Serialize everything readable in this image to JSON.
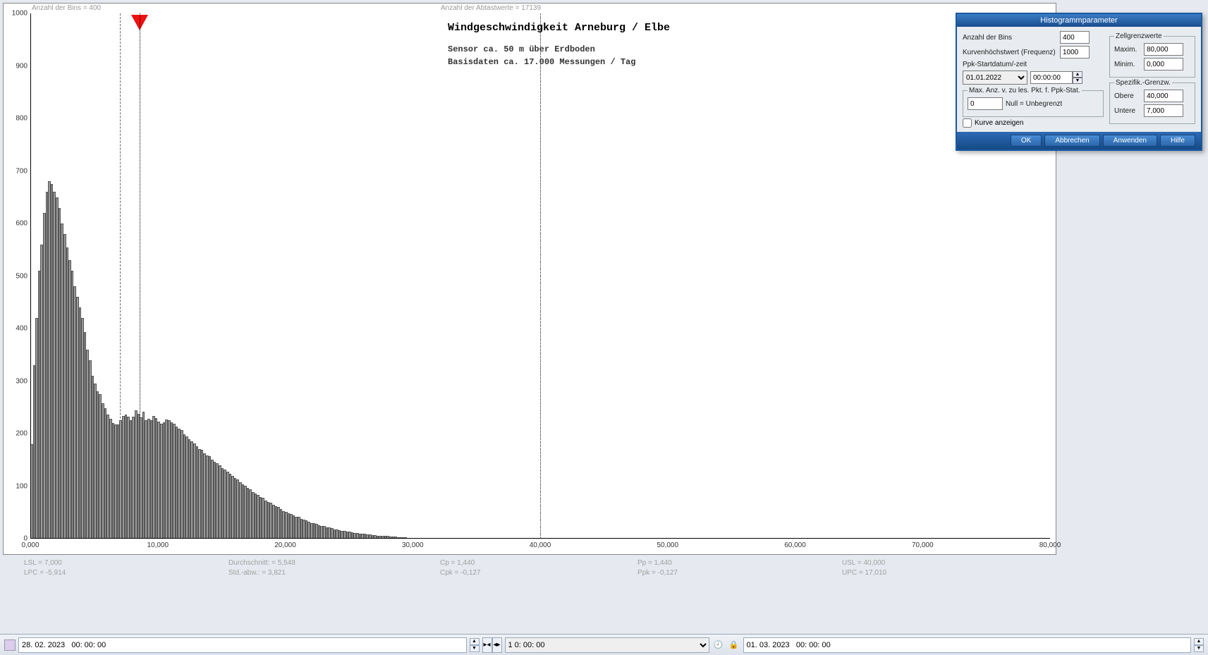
{
  "top_labels": {
    "bins": "Anzahl der Bins =   400",
    "samples": "Anzahl der Abtastwerte = 17139"
  },
  "chart": {
    "title": "Windgeschwindigkeit  Arneburg / Elbe",
    "sub1": "Sensor ca. 50 m über Erdboden",
    "sub2": "Basisdaten ca. 17.000 Messungen / Tag",
    "xlim": [
      0,
      80
    ],
    "ylim": [
      0,
      1000
    ],
    "xtick_labels": [
      "0,000",
      "10,000",
      "20,000",
      "30,000",
      "40,000",
      "50,000",
      "60,000",
      "70,000",
      "80,000"
    ],
    "ytick_labels": [
      "0",
      "100",
      "200",
      "300",
      "400",
      "500",
      "600",
      "700",
      "800",
      "900",
      "1000"
    ],
    "xtick_vals": [
      0,
      10,
      20,
      30,
      40,
      50,
      60,
      70,
      80
    ],
    "ytick_vals": [
      0,
      100,
      200,
      300,
      400,
      500,
      600,
      700,
      800,
      900,
      1000
    ],
    "bar_color": "#999999",
    "bar_border": "#555555",
    "bg": "#ffffff",
    "vlines": [
      {
        "x": 7.0,
        "style": "dashed",
        "color": "#666"
      },
      {
        "x": 40.0,
        "style": "dashdot",
        "color": "#666"
      }
    ],
    "marker_x": 8.6,
    "bar_width_x": 0.2,
    "bars": [
      180,
      330,
      420,
      510,
      560,
      620,
      660,
      680,
      675,
      660,
      650,
      630,
      600,
      580,
      555,
      530,
      510,
      480,
      460,
      440,
      420,
      393,
      360,
      340,
      310,
      295,
      280,
      275,
      258,
      248,
      236,
      228,
      220,
      217,
      218,
      225,
      233,
      236,
      232,
      226,
      232,
      244,
      238,
      231,
      242,
      225,
      228,
      226,
      233,
      230,
      223,
      219,
      222,
      227,
      225,
      221,
      219,
      214,
      209,
      207,
      199,
      194,
      189,
      185,
      181,
      176,
      171,
      169,
      163,
      159,
      157,
      150,
      146,
      144,
      139,
      134,
      132,
      128,
      123,
      120,
      116,
      113,
      108,
      104,
      101,
      97,
      94,
      89,
      86,
      83,
      79,
      78,
      73,
      70,
      69,
      65,
      62,
      60,
      57,
      53,
      51,
      48,
      47,
      44,
      42,
      41,
      38,
      36,
      35,
      32,
      30,
      29,
      28,
      26,
      24,
      24,
      22,
      21,
      20,
      18,
      18,
      16,
      15,
      15,
      13,
      13,
      12,
      11,
      11,
      10,
      9,
      9,
      8,
      8,
      7,
      7,
      6,
      6,
      5,
      5,
      5,
      4,
      4,
      4,
      3,
      3,
      3,
      3,
      2,
      2,
      2,
      2,
      2,
      2,
      1,
      1,
      1,
      1,
      1,
      1,
      1,
      1,
      0,
      0,
      0,
      0,
      0
    ]
  },
  "stats": {
    "lsl": "LSL = 7,000",
    "lpc": "LPC = -5,914",
    "avg": "Durchschnitt: = 5,548",
    "std": "Std.-abw.: = 3,821",
    "cp": "Cp  = 1,440",
    "cpk": "Cpk = -0,127",
    "pp": "Pp  = 1,440",
    "ppk": "Ppk = -0,127",
    "usl": "USL = 40,000",
    "upc": "UPC = 17,010"
  },
  "dialog": {
    "title": "Histogrammparameter",
    "bins_lbl": "Anzahl der Bins",
    "bins_val": "400",
    "freq_lbl": "Kurvenhöchstwert (Frequenz)",
    "freq_val": "1000",
    "ppk_lbl": "Ppk-Startdatum/-zeit",
    "ppk_date": "01.01.2022",
    "ppk_time": "00:00:00",
    "maxpkt_legend": "Max. Anz. v. zu les. Pkt. f. Ppk-Stat.",
    "maxpkt_val": "0",
    "maxpkt_hint": "Null = Unbegrenzt",
    "zell_legend": "Zellgrenzwerte",
    "zell_max_lbl": "Maxim.",
    "zell_max": "80,000",
    "zell_min_lbl": "Minim.",
    "zell_min": "0,000",
    "spez_legend": "Spezifik.-Grenzw.",
    "spez_ob_lbl": "Obere",
    "spez_ob": "40,000",
    "spez_un_lbl": "Untere",
    "spez_un": "7,000",
    "kurve_lbl": "Kurve anzeigen",
    "btn_ok": "OK",
    "btn_cancel": "Abbrechen",
    "btn_apply": "Anwenden",
    "btn_help": "Hilfe"
  },
  "bottom": {
    "start": "28. 02. 2023   00: 00: 00",
    "span": "1  0: 00: 00",
    "end": "01. 03. 2023   00: 00: 00"
  }
}
